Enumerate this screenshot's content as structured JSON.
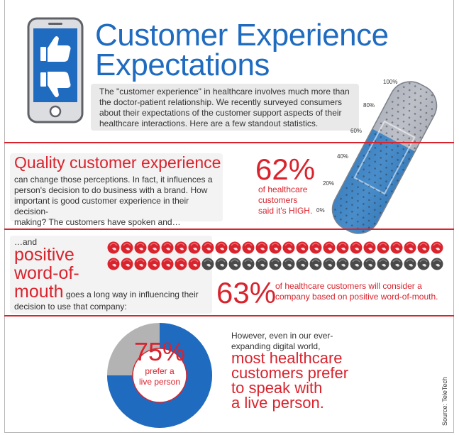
{
  "title": {
    "line1": "Customer Experience",
    "line2": "Expectations"
  },
  "intro": {
    "line1": "The \"customer experience\" in healthcare involves much more than",
    "line2": "the doctor-patient relationship. We recently surveyed consumers",
    "line3": "about their expectations of the customer support aspects of their",
    "line4": "healthcare interactions. Here are a few standout statistics."
  },
  "section1": {
    "heading": "Quality customer experience",
    "line1": "can change those perceptions. In fact, it influences a",
    "line2": "person's decision to do business with a brand. How",
    "line3": "important is good customer experience in their decision-",
    "line4": "making? The customers have spoken and…",
    "stat": "62%",
    "caption1": "of healthcare",
    "caption2": "customers",
    "caption3": "said it's HIGH."
  },
  "bandage_gauge": {
    "value_percent": 62,
    "ticks": [
      "100%",
      "80%",
      "60%",
      "40%",
      "20%",
      "0%"
    ],
    "colors": {
      "fill": "#1f78c8",
      "empty": "#b9bcc4"
    }
  },
  "section2": {
    "pre": "…and",
    "head1": "positive",
    "head2": "word-of-",
    "head3": "mouth",
    "text_inline": " goes a long way in influencing their",
    "text2": "decision to use that company:",
    "stat": "63%",
    "caption1": "of healthcare customers will consider a",
    "caption2": "company based on positive word-of-mouth."
  },
  "mouth_icons": {
    "total": 50,
    "filled": 32,
    "colors": {
      "filled": "#d9232d",
      "empty": "#4a4a4a"
    }
  },
  "section3": {
    "donut_stat": "75%",
    "donut_caption1": "prefer a",
    "donut_caption2": "live person",
    "text1": "However, even in our ever-",
    "text2": "expanding digital world,",
    "head1": "most healthcare",
    "head2": "customers prefer",
    "head3": "to speak with",
    "head4": "a live person."
  },
  "donut": {
    "value_percent": 75,
    "colors": {
      "fill": "#1f6bc0",
      "rest": "#b3b3b3"
    }
  },
  "source": "Source: TeleTech",
  "colors": {
    "accent_red": "#d9232d",
    "accent_blue": "#1f6bc0"
  }
}
